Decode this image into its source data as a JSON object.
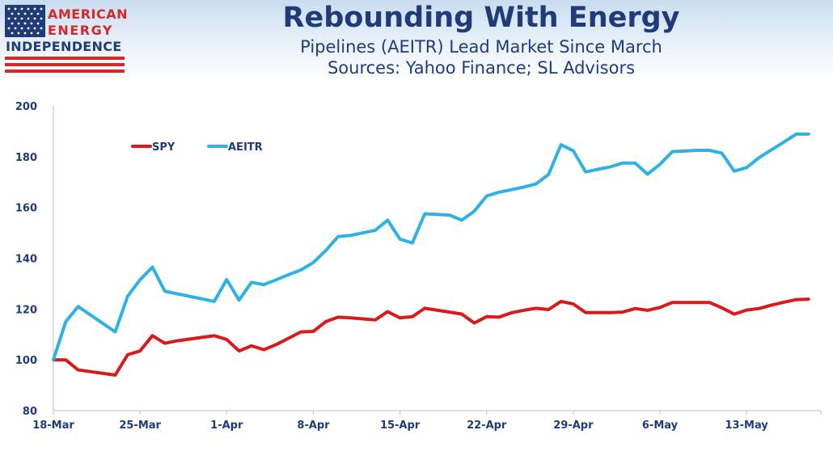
{
  "header": {
    "title": "Rebounding With Energy",
    "subtitle_line1": "Pipelines (AEITR) Lead Market Since March",
    "subtitle_line2": "Sources: Yahoo Finance; SL Advisors"
  },
  "logo": {
    "line1": "AMERICAN",
    "line2": "ENERGY",
    "line3": "INDEPENDENCE",
    "colors": {
      "red": "#d02a2a",
      "blue": "#1f3c78"
    }
  },
  "chart_data": {
    "type": "line",
    "title": "Rebounding With Energy",
    "xlabel": "",
    "ylabel": "",
    "x_tick_labels": [
      "18-Mar",
      "25-Mar",
      "1-Apr",
      "8-Apr",
      "15-Apr",
      "22-Apr",
      "29-Apr",
      "6-May",
      "13-May"
    ],
    "x_range": [
      0,
      62
    ],
    "ylim": [
      80,
      200
    ],
    "y_ticks": [
      80,
      100,
      120,
      140,
      160,
      180,
      200
    ],
    "grid": false,
    "legend_position": "top-left",
    "series": [
      {
        "name": "SPY",
        "color": "#d91a1a",
        "x": [
          0,
          1,
          2,
          5,
          6,
          7,
          8,
          9,
          10,
          13,
          14,
          15,
          16,
          17,
          18,
          19,
          20,
          21,
          22,
          23,
          24,
          26,
          27,
          28,
          29,
          30,
          32,
          33,
          34,
          35,
          36,
          37,
          38,
          39,
          40,
          41,
          42,
          43,
          44,
          45,
          46,
          47,
          48,
          49,
          50,
          51,
          52,
          53,
          54,
          55,
          56,
          57,
          58,
          59,
          60,
          61
        ],
        "values": [
          100,
          100,
          96,
          94,
          102,
          103.5,
          109.5,
          106.5,
          107.5,
          109.5,
          108,
          103.5,
          105.5,
          104,
          106,
          108.5,
          111,
          111.2,
          115,
          116.8,
          116.5,
          115.7,
          119,
          116.5,
          117,
          120.3,
          118.8,
          118,
          114.5,
          117,
          116.8,
          118.5,
          119.5,
          120.3,
          119.8,
          123,
          122,
          118.6,
          118.6,
          118.6,
          118.8,
          120.2,
          119.5,
          120.6,
          122.6,
          122.6,
          122.6,
          122.6,
          120.5,
          118,
          119.6,
          120.2,
          121.5,
          122.7,
          123.7,
          123.9
        ]
      },
      {
        "name": "AEITR",
        "color": "#2fb1e4",
        "x": [
          0,
          1,
          2,
          5,
          6,
          7,
          8,
          9,
          10,
          13,
          14,
          15,
          16,
          17,
          18,
          19,
          20,
          21,
          22,
          23,
          24,
          26,
          27,
          28,
          29,
          30,
          32,
          33,
          34,
          35,
          36,
          37,
          38,
          39,
          40,
          41,
          42,
          43,
          44,
          45,
          46,
          47,
          48,
          49,
          50,
          51,
          52,
          53,
          54,
          55,
          56,
          57,
          58,
          59,
          60,
          61
        ],
        "values": [
          100,
          115,
          121,
          111,
          125,
          131.5,
          136.5,
          127,
          126,
          123,
          131.6,
          123.5,
          130.5,
          129.6,
          131.5,
          133.5,
          135.4,
          138.3,
          143,
          148.5,
          149,
          151,
          155,
          147.5,
          146,
          157.5,
          157,
          155,
          158.5,
          164.5,
          166,
          167,
          168,
          169.3,
          173,
          184.7,
          182.3,
          174,
          175,
          176,
          177.5,
          177.5,
          173.1,
          177,
          182,
          182.2,
          182.5,
          182.5,
          181.4,
          174.3,
          175.7,
          179.6,
          182.7,
          185.7,
          188.9,
          188.9
        ]
      }
    ]
  }
}
